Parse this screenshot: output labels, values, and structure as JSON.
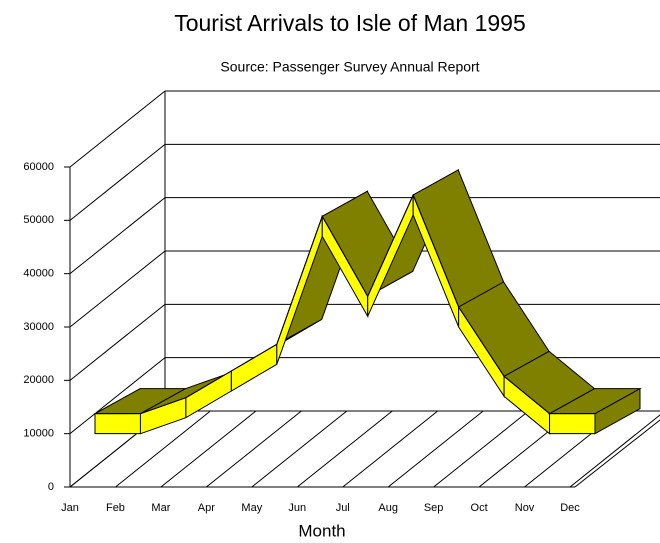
{
  "chart_data": {
    "type": "line3d",
    "title": "Tourist Arrivals to Isle of Man 1995",
    "subtitle": "Source:  Passenger Survey Annual Report",
    "x_label": "Month",
    "categories": [
      "Jan",
      "Feb",
      "Mar",
      "Apr",
      "May",
      "Jun",
      "Jul",
      "Aug",
      "Sep",
      "Oct",
      "Nov",
      "Dec"
    ],
    "series": [
      {
        "name": "Tourist Arrivals",
        "color": "#ffff00",
        "top_color": "#808000",
        "values": [
          10000,
          10000,
          13000,
          18000,
          23000,
          47000,
          32000,
          51000,
          30000,
          17000,
          10000,
          10000
        ]
      }
    ],
    "ylim": [
      0,
      60000
    ],
    "yticks": [
      0,
      10000,
      20000,
      30000,
      40000,
      50000,
      60000
    ],
    "grid": true
  }
}
